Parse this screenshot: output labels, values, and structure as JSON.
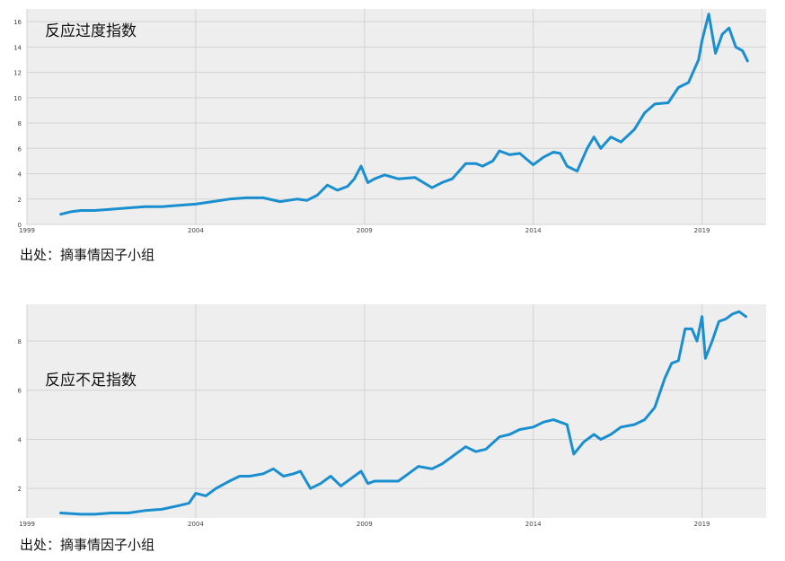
{
  "sources": [
    "出处：摘事情因子小组",
    "出处：摘事情因子小组"
  ],
  "chart_data": [
    {
      "type": "line",
      "annotation": "反应过度指数",
      "line_color": "#1a8fcf",
      "background": "#eeeeee",
      "grid": true,
      "xlim": [
        1999.0,
        2020.9
      ],
      "ylim": [
        0,
        17
      ],
      "xticks": [
        1999,
        2004,
        2009,
        2014,
        2019
      ],
      "xtick_labels": [
        "1999",
        "2004",
        "2009",
        "2014",
        "2019"
      ],
      "yticks": [
        0,
        2,
        4,
        6,
        8,
        10,
        12,
        14,
        16
      ],
      "ytick_labels": [
        "0",
        "2",
        "4",
        "6",
        "8",
        "10",
        "12",
        "14",
        "16"
      ],
      "series": [
        {
          "x": [
            2000.0,
            2000.3,
            2000.6,
            2001.0,
            2001.5,
            2002.0,
            2002.5,
            2003.0,
            2003.5,
            2004.0,
            2004.5,
            2005.0,
            2005.5,
            2006.0,
            2006.5,
            2007.0,
            2007.3,
            2007.6,
            2007.9,
            2008.2,
            2008.5,
            2008.7,
            2008.9,
            2009.1,
            2009.3,
            2009.6,
            2010.0,
            2010.5,
            2011.0,
            2011.3,
            2011.6,
            2012.0,
            2012.3,
            2012.5,
            2012.8,
            2013.0,
            2013.3,
            2013.6,
            2014.0,
            2014.3,
            2014.6,
            2014.8,
            2015.0,
            2015.3,
            2015.6,
            2015.8,
            2016.0,
            2016.3,
            2016.6,
            2017.0,
            2017.3,
            2017.6,
            2018.0,
            2018.3,
            2018.6,
            2018.9,
            2019.0,
            2019.2,
            2019.4,
            2019.6,
            2019.8,
            2020.0,
            2020.2,
            2020.35
          ],
          "values": [
            0.8,
            1.0,
            1.1,
            1.1,
            1.2,
            1.3,
            1.4,
            1.4,
            1.5,
            1.6,
            1.8,
            2.0,
            2.1,
            2.1,
            1.8,
            2.0,
            1.9,
            2.3,
            3.1,
            2.7,
            3.0,
            3.6,
            4.6,
            3.3,
            3.6,
            3.9,
            3.6,
            3.7,
            2.9,
            3.3,
            3.6,
            4.8,
            4.8,
            4.6,
            5.0,
            5.8,
            5.5,
            5.6,
            4.7,
            5.3,
            5.7,
            5.6,
            4.6,
            4.2,
            6.0,
            6.9,
            6.0,
            6.9,
            6.5,
            7.5,
            8.8,
            9.5,
            9.6,
            10.8,
            11.2,
            13.0,
            14.5,
            16.6,
            13.5,
            15.0,
            15.5,
            14.0,
            13.7,
            12.9
          ]
        }
      ]
    },
    {
      "type": "line",
      "annotation": "反应不足指数",
      "line_color": "#1a8fcf",
      "background": "#eeeeee",
      "grid": true,
      "xlim": [
        1999.0,
        2020.9
      ],
      "ylim": [
        0.8,
        9.5
      ],
      "xticks": [
        1999,
        2004,
        2009,
        2014,
        2019
      ],
      "xtick_labels": [
        "1999",
        "2004",
        "2009",
        "2014",
        "2019"
      ],
      "yticks": [
        2,
        4,
        6,
        8
      ],
      "ytick_labels": [
        "2",
        "4",
        "6",
        "8"
      ],
      "series": [
        {
          "x": [
            2000.0,
            2000.6,
            2001.0,
            2001.5,
            2002.0,
            2002.5,
            2003.0,
            2003.5,
            2003.8,
            2004.0,
            2004.3,
            2004.6,
            2005.0,
            2005.3,
            2005.6,
            2006.0,
            2006.3,
            2006.6,
            2006.9,
            2007.1,
            2007.4,
            2007.7,
            2008.0,
            2008.3,
            2008.6,
            2008.9,
            2009.1,
            2009.3,
            2009.6,
            2010.0,
            2010.3,
            2010.6,
            2011.0,
            2011.3,
            2011.6,
            2012.0,
            2012.3,
            2012.6,
            2013.0,
            2013.3,
            2013.6,
            2014.0,
            2014.3,
            2014.6,
            2014.8,
            2015.0,
            2015.2,
            2015.5,
            2015.8,
            2016.0,
            2016.3,
            2016.6,
            2017.0,
            2017.3,
            2017.6,
            2017.9,
            2018.1,
            2018.3,
            2018.5,
            2018.7,
            2018.85,
            2019.0,
            2019.1,
            2019.3,
            2019.5,
            2019.7,
            2019.9,
            2020.1,
            2020.3
          ],
          "values": [
            1.0,
            0.95,
            0.95,
            1.0,
            1.0,
            1.1,
            1.15,
            1.3,
            1.4,
            1.8,
            1.7,
            2.0,
            2.3,
            2.5,
            2.5,
            2.6,
            2.8,
            2.5,
            2.6,
            2.7,
            2.0,
            2.2,
            2.5,
            2.1,
            2.4,
            2.7,
            2.2,
            2.3,
            2.3,
            2.3,
            2.6,
            2.9,
            2.8,
            3.0,
            3.3,
            3.7,
            3.5,
            3.6,
            4.1,
            4.2,
            4.4,
            4.5,
            4.7,
            4.8,
            4.7,
            4.6,
            3.4,
            3.9,
            4.2,
            4.0,
            4.2,
            4.5,
            4.6,
            4.8,
            5.3,
            6.5,
            7.1,
            7.2,
            8.5,
            8.5,
            8.0,
            9.0,
            7.3,
            8.0,
            8.8,
            8.9,
            9.1,
            9.2,
            9.0
          ]
        }
      ]
    }
  ]
}
